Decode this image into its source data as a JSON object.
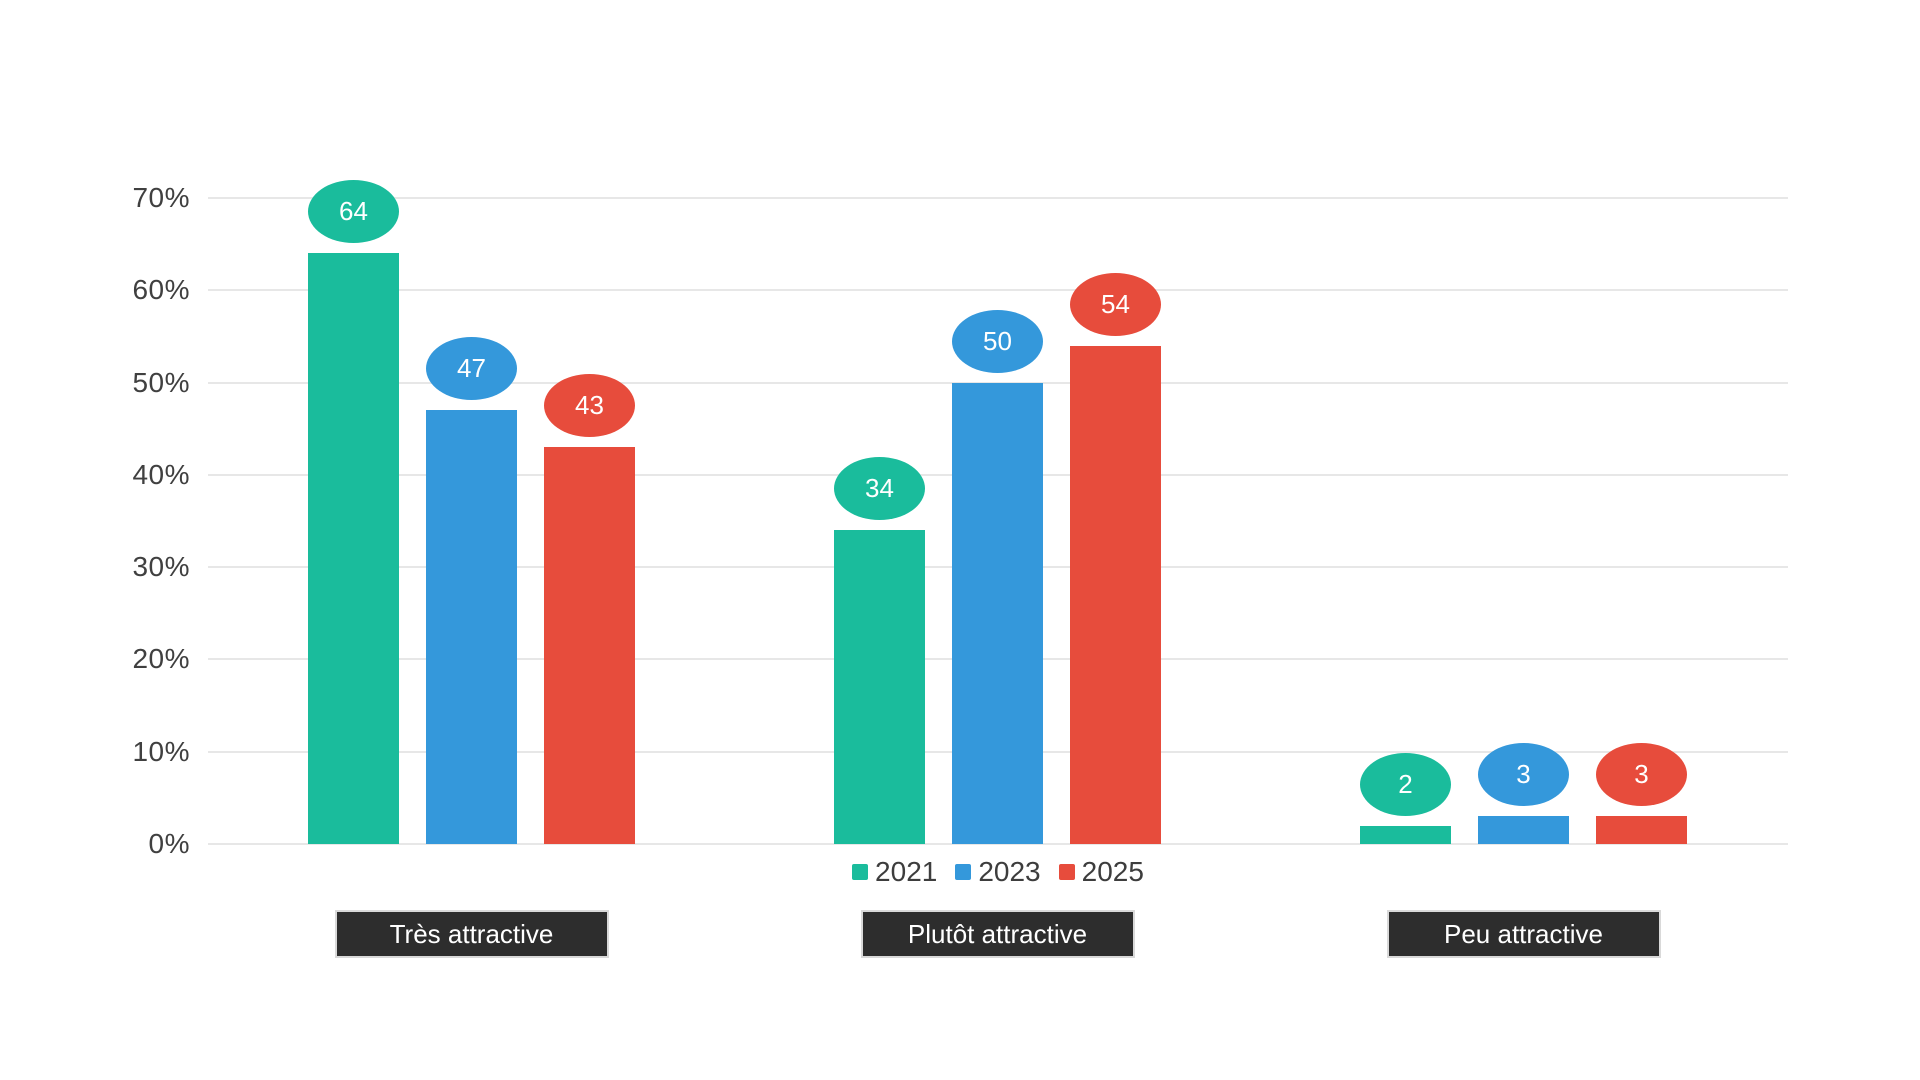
{
  "chart_data": {
    "type": "bar",
    "title": "",
    "categories": [
      "Très attractive",
      "Plutôt attractive",
      "Peu attractive"
    ],
    "series": [
      {
        "name": "2021",
        "color": "#1abc9c",
        "values": [
          64,
          34,
          2
        ]
      },
      {
        "name": "2023",
        "color": "#3498db",
        "values": [
          47,
          50,
          3
        ]
      },
      {
        "name": "2025",
        "color": "#e74c3c",
        "values": [
          43,
          54,
          3
        ]
      }
    ],
    "yticks": [
      "0%",
      "10%",
      "20%",
      "30%",
      "40%",
      "50%",
      "60%",
      "70%"
    ],
    "ylim": [
      0,
      70
    ],
    "grid": true,
    "legend_position": "bottom-center",
    "value_labels": "ellipse-badge-above-bar",
    "colors": {
      "background": "#ffffff",
      "grid_line": "#e7e7e7",
      "tick_label": "#404040",
      "legend_label": "#3d3d3d",
      "badge_text": "#ffffff",
      "category_box_bg": "#2d2d2d",
      "category_box_border": "#d9d9d9",
      "category_box_text": "#ffffff"
    }
  }
}
